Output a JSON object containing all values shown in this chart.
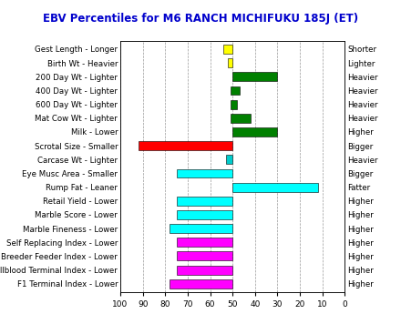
{
  "title": "EBV Percentiles for M6 RANCH MICHIFUKU 185J (ET)",
  "title_color": "#0000cc",
  "categories": [
    "Gest Length - Longer",
    "Birth Wt - Heavier",
    "200 Day Wt - Lighter",
    "400 Day Wt - Lighter",
    "600 Day Wt - Lighter",
    "Mat Cow Wt - Lighter",
    "Milk - Lower",
    "Scrotal Size - Smaller",
    "Carcase Wt - Lighter",
    "Eye Musc Area - Smaller",
    "Rump Fat - Leaner",
    "Retail Yield - Lower",
    "Marble Score - Lower",
    "Marble Fineness - Lower",
    "Self Replacing Index - Lower",
    "Breeder Feeder Index - Lower",
    "Fullblood Terminal Index - Lower",
    "F1 Terminal Index - Lower"
  ],
  "right_labels": [
    "Shorter",
    "Lighter",
    "Heavier",
    "Heavier",
    "Heavier",
    "Heavier",
    "Higher",
    "Bigger",
    "Heavier",
    "Bigger",
    "Fatter",
    "Higher",
    "Higher",
    "Higher",
    "Higher",
    "Higher",
    "Higher",
    "Higher"
  ],
  "bar_left": [
    50,
    50,
    30,
    47,
    48,
    42,
    30,
    50,
    50,
    50,
    12,
    50,
    50,
    50,
    50,
    50,
    50,
    50
  ],
  "bar_width": [
    4,
    2,
    20,
    4,
    3,
    9,
    20,
    42,
    3,
    25,
    38,
    25,
    25,
    28,
    25,
    25,
    25,
    28
  ],
  "bar_colors": [
    "#ffff00",
    "#ffff00",
    "#008000",
    "#008000",
    "#008000",
    "#008000",
    "#008000",
    "#ff0000",
    "#00cccc",
    "#00ffff",
    "#00ffff",
    "#00ffff",
    "#00ffff",
    "#00ffff",
    "#ff00ff",
    "#ff00ff",
    "#ff00ff",
    "#ff00ff"
  ],
  "xticks": [
    0,
    10,
    20,
    30,
    40,
    50,
    60,
    70,
    80,
    90,
    100
  ],
  "xticklabels": [
    "0",
    "10",
    "20",
    "30",
    "40",
    "50",
    "60",
    "70",
    "80",
    "90",
    "100"
  ],
  "background_color": "#ffffff",
  "grid_color": "#999999"
}
